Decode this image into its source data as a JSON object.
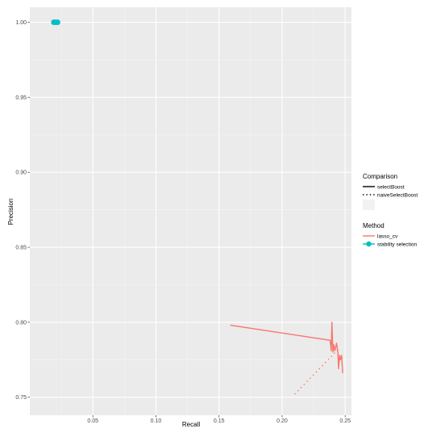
{
  "chart_data": {
    "type": "line",
    "xlabel": "Recall",
    "ylabel": "Precision",
    "xlim": [
      0.0,
      0.255
    ],
    "ylim": [
      0.738,
      1.01
    ],
    "x_ticks": [
      {
        "value": 0.05,
        "label": "0.05"
      },
      {
        "value": 0.1,
        "label": "0.10"
      },
      {
        "value": 0.15,
        "label": "0.15"
      },
      {
        "value": 0.2,
        "label": "0.20"
      },
      {
        "value": 0.25,
        "label": "0.25"
      }
    ],
    "y_ticks": [
      {
        "value": 0.75,
        "label": "0.75"
      },
      {
        "value": 0.8,
        "label": "0.80"
      },
      {
        "value": 0.85,
        "label": "0.85"
      },
      {
        "value": 0.9,
        "label": "0.90"
      },
      {
        "value": 0.95,
        "label": "0.95"
      },
      {
        "value": 1.0,
        "label": "1.00"
      }
    ],
    "grid": true,
    "background": "#ebebeb",
    "legend": {
      "placement": "right",
      "groups": [
        {
          "title": "Comparison",
          "entries": [
            {
              "label": "selectBoost",
              "linetype": "solid",
              "color": "#000000"
            },
            {
              "label": "naiveSelectBoost",
              "linetype": "dotted",
              "color": "#000000"
            },
            {
              "label": "",
              "linetype": "blank",
              "color": "#f2f2f2"
            }
          ]
        },
        {
          "title": "Method",
          "entries": [
            {
              "label": "lasso_cv",
              "linetype": "solid",
              "color": "#f8766d"
            },
            {
              "label": "stability selection",
              "linetype": "point",
              "color": "#00bfc4"
            }
          ]
        }
      ]
    },
    "series": [
      {
        "method": "lasso_cv",
        "comparison": "selectBoost",
        "color": "#f8766d",
        "linetype": "solid",
        "points": [
          {
            "x": 0.159,
            "y": 0.798
          },
          {
            "x": 0.238,
            "y": 0.788
          },
          {
            "x": 0.239,
            "y": 0.781
          },
          {
            "x": 0.2395,
            "y": 0.8
          },
          {
            "x": 0.2403,
            "y": 0.78
          },
          {
            "x": 0.241,
            "y": 0.785
          },
          {
            "x": 0.2418,
            "y": 0.781
          },
          {
            "x": 0.2432,
            "y": 0.786
          },
          {
            "x": 0.2442,
            "y": 0.78
          },
          {
            "x": 0.2448,
            "y": 0.769
          },
          {
            "x": 0.2455,
            "y": 0.778
          },
          {
            "x": 0.2462,
            "y": 0.775
          },
          {
            "x": 0.2472,
            "y": 0.778
          },
          {
            "x": 0.248,
            "y": 0.766
          }
        ]
      },
      {
        "method": "lasso_cv",
        "comparison": "naiveSelectBoost",
        "color": "#f8766d",
        "linetype": "dotted",
        "points": [
          {
            "x": 0.21,
            "y": 0.752
          },
          {
            "x": 0.225,
            "y": 0.765
          },
          {
            "x": 0.24,
            "y": 0.778
          },
          {
            "x": 0.245,
            "y": 0.782
          }
        ]
      },
      {
        "method": "stability selection",
        "comparison": "selectBoost",
        "color": "#00bfc4",
        "linetype": "point",
        "points": [
          {
            "x": 0.019,
            "y": 1.0
          },
          {
            "x": 0.0205,
            "y": 1.0
          },
          {
            "x": 0.022,
            "y": 1.0
          }
        ]
      }
    ]
  }
}
